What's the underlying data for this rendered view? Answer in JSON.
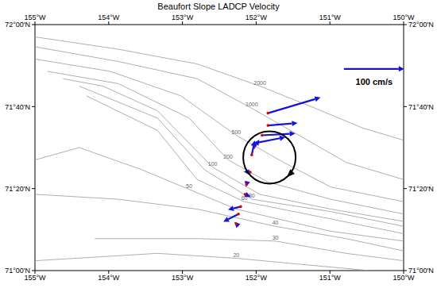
{
  "chart_data": {
    "type": "vector_map",
    "title": "Beaufort Slope LADCP Velocity",
    "xlim": [
      -155,
      -150
    ],
    "xticks": [
      {
        "value": -155,
        "label": "155°W"
      },
      {
        "value": -154,
        "label": "154°W"
      },
      {
        "value": -153,
        "label": "153°W"
      },
      {
        "value": -152,
        "label": "152°W"
      },
      {
        "value": -151,
        "label": "151°W"
      },
      {
        "value": -150,
        "label": "150°W"
      }
    ],
    "ylim": [
      71,
      72
    ],
    "yticks": [
      {
        "value": 71,
        "label": "71°00'N"
      },
      {
        "value": 71.33333333,
        "label": "71°20'N"
      },
      {
        "value": 71.66666667,
        "label": "71°40'N"
      },
      {
        "value": 72,
        "label": "72°00'N"
      }
    ],
    "vectors": {
      "color": "#1414d8",
      "lon": [
        -151.84,
        -151.84,
        -151.92,
        -151.99,
        -152.03,
        -152.06,
        -152.08,
        -152.13,
        -152.15,
        -152.21,
        -152.24,
        -152.27
      ],
      "lat": [
        71.64,
        71.59,
        71.55,
        71.52,
        71.5,
        71.47,
        71.4,
        71.35,
        71.31,
        71.26,
        71.23,
        71.19
      ],
      "u": [
        87,
        49,
        55,
        47,
        9,
        5,
        -11,
        -1,
        9,
        -21,
        -25,
        -3
      ],
      "v": [
        26,
        4,
        3,
        9,
        13,
        24,
        1,
        -4,
        -4,
        -5,
        -13,
        3
      ]
    },
    "scale": {
      "label": "100 cm/s",
      "value": 100,
      "lon": -150.81,
      "lat": 71.82
    },
    "circle": {
      "lon": -151.82,
      "lat": 71.46
    },
    "contours": [
      {
        "depth": 2000,
        "lon": [
          -155,
          -153.87,
          -152.8,
          -151.95,
          -151.2,
          -150.56,
          -150
        ],
        "lat": [
          71.95,
          71.9,
          71.84,
          71.75,
          71.66,
          71.58,
          71.53
        ]
      },
      {
        "depth": 1000,
        "lon": [
          -155,
          -153.87,
          -152.8,
          -152.06,
          -151.42,
          -150.78,
          -150
        ],
        "lat": [
          71.91,
          71.85,
          71.78,
          71.66,
          71.55,
          71.44,
          71.37
        ]
      },
      {
        "depth": 500,
        "lon": [
          -155,
          -153.98,
          -153.02,
          -152.27,
          -151.63,
          -150.99,
          -150
        ],
        "lat": [
          71.86,
          71.81,
          71.71,
          71.55,
          71.44,
          71.34,
          71.28
        ]
      },
      {
        "depth": 200,
        "lon": [
          -154.83,
          -153.87,
          -152.91,
          -152.38,
          -151.84,
          -150.99,
          -150
        ],
        "lat": [
          71.81,
          71.76,
          71.62,
          71.45,
          71.36,
          71.29,
          71.23
        ]
      },
      {
        "depth": 100,
        "lon": [
          -154.62,
          -154.08,
          -153.34,
          -152.59,
          -151.95,
          -150.99,
          -150
        ],
        "lat": [
          71.78,
          71.75,
          71.65,
          71.42,
          71.31,
          71.25,
          71.2
        ]
      },
      {
        "depth": 80,
        "lon": [
          -154.4,
          -153.34,
          -152.7,
          -152.06,
          -150.99,
          -150
        ],
        "lat": [
          71.75,
          71.62,
          71.41,
          71.29,
          71.24,
          71.18
        ]
      },
      {
        "depth": 60,
        "lon": [
          -154.3,
          -153.34,
          -152.8,
          -152.16,
          -150.99,
          -150
        ],
        "lat": [
          71.71,
          71.57,
          71.37,
          71.28,
          71.21,
          71.15
        ]
      },
      {
        "depth": 50,
        "lon": [
          -155,
          -154.4,
          -153.55,
          -152.91,
          -152.27,
          -150.99,
          -150
        ],
        "lat": [
          71.45,
          71.5,
          71.41,
          71.33,
          71.25,
          71.16,
          71.12
        ]
      },
      {
        "depth": 40,
        "lon": [
          -155,
          -153.87,
          -152.8,
          -151.74,
          -150.78,
          -150
        ],
        "lat": [
          71.31,
          71.29,
          71.25,
          71.18,
          71.13,
          71.08
        ]
      },
      {
        "depth": 30,
        "lon": [
          -154.19,
          -152.8,
          -151.74,
          -150.78,
          -150
        ],
        "lat": [
          71.13,
          71.13,
          71.12,
          71.07,
          71.04
        ]
      },
      {
        "depth": 20,
        "lon": [
          -155,
          -153.34,
          -152.27,
          -151.2,
          -150.46
        ],
        "lat": [
          71.04,
          71.07,
          71.05,
          71.02,
          71
        ]
      }
    ]
  }
}
